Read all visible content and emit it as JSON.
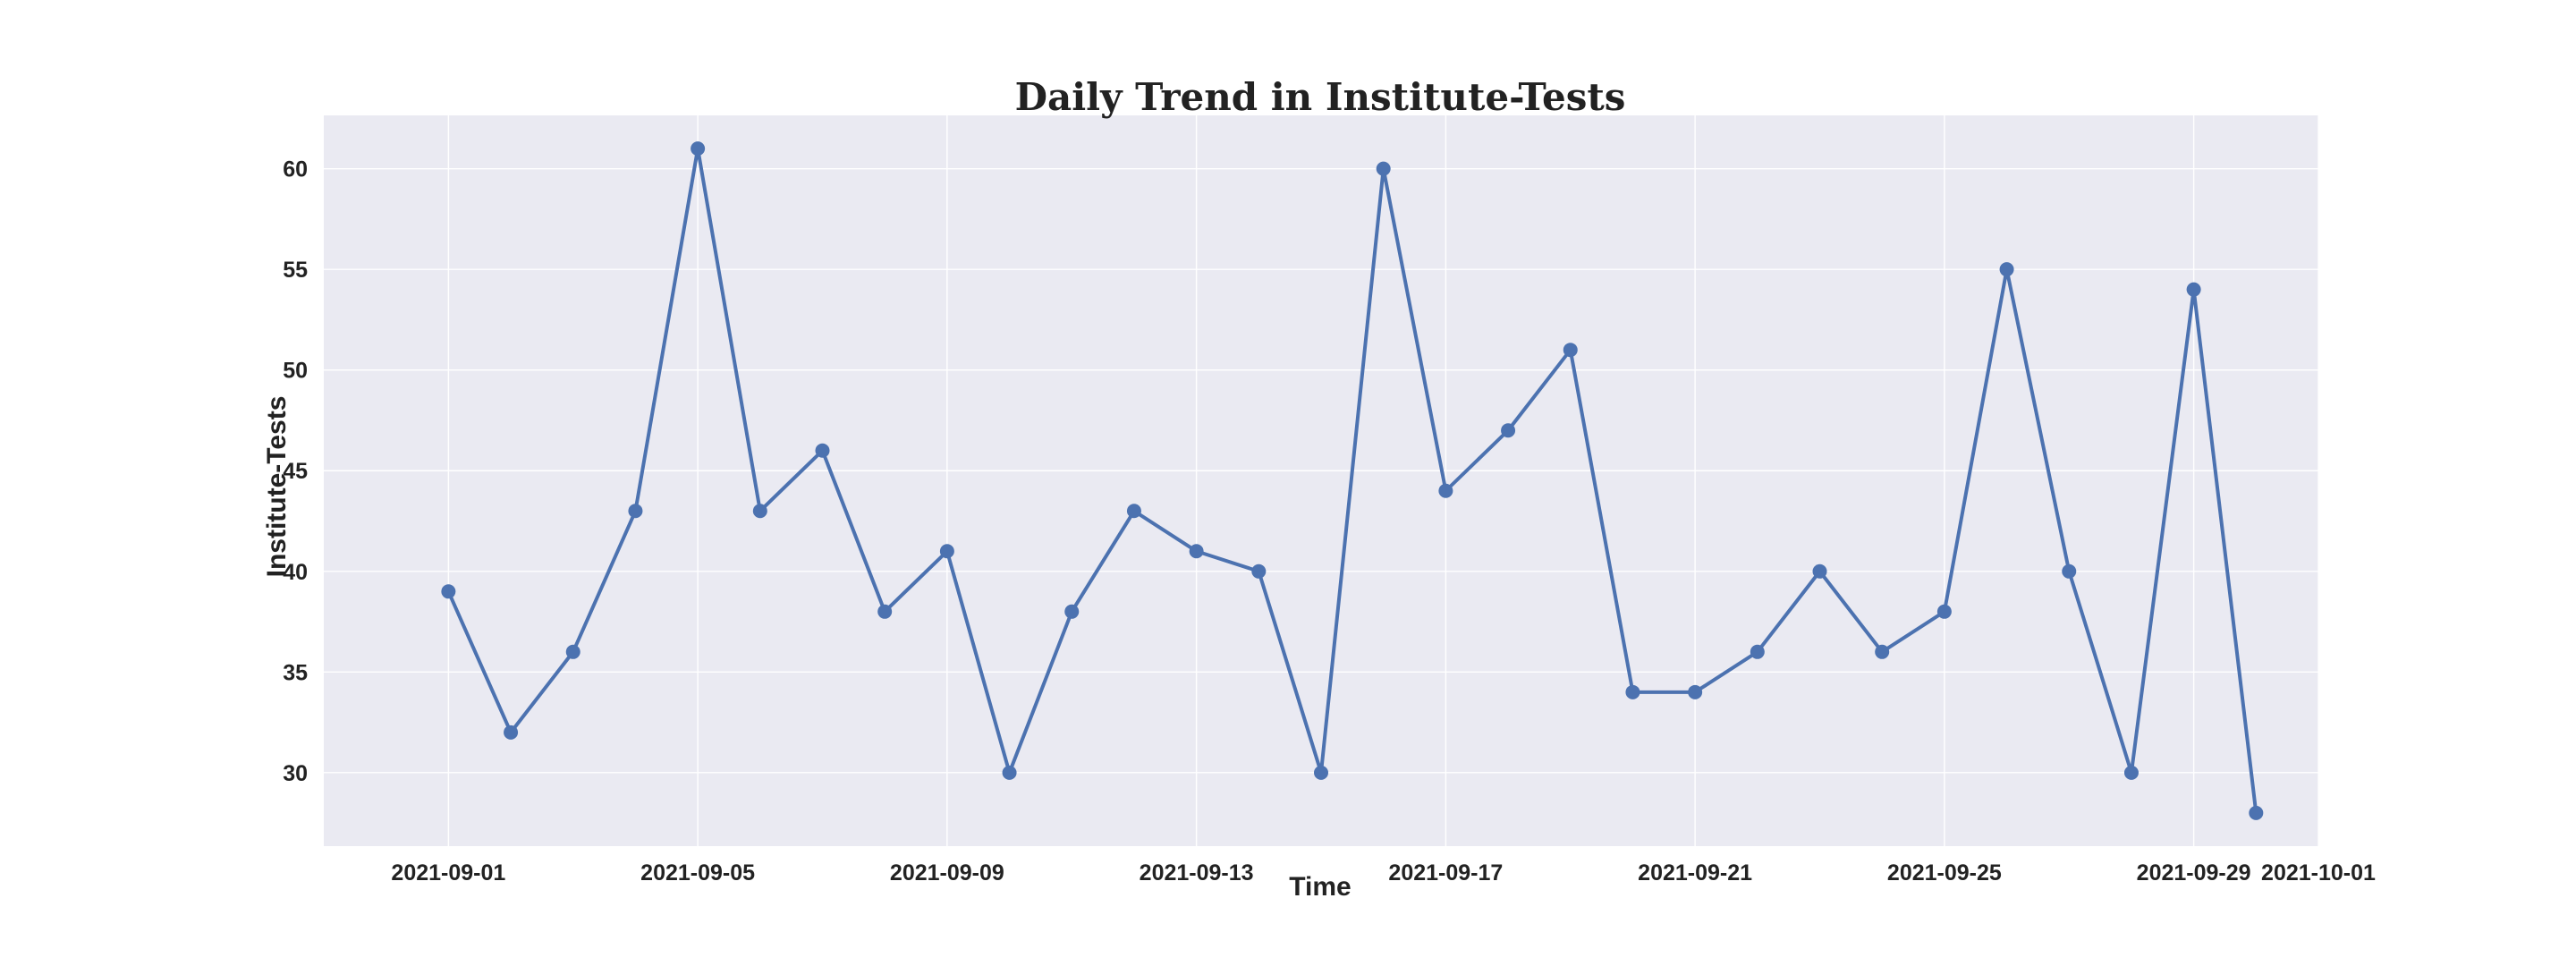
{
  "colors": {
    "plot_background": "#EAEAF2",
    "line": "#4C72B0",
    "grid": "#FFFFFF",
    "text": "#222222"
  },
  "chart_data": {
    "type": "line",
    "title": "Daily Trend in Institute-Tests",
    "xlabel": "Time",
    "ylabel": "Institute-Tests",
    "x": [
      "2021-09-01",
      "2021-09-02",
      "2021-09-03",
      "2021-09-04",
      "2021-09-05",
      "2021-09-06",
      "2021-09-07",
      "2021-09-08",
      "2021-09-09",
      "2021-09-10",
      "2021-09-11",
      "2021-09-12",
      "2021-09-13",
      "2021-09-14",
      "2021-09-15",
      "2021-09-16",
      "2021-09-17",
      "2021-09-18",
      "2021-09-19",
      "2021-09-20",
      "2021-09-21",
      "2021-09-22",
      "2021-09-23",
      "2021-09-24",
      "2021-09-25",
      "2021-09-26",
      "2021-09-27",
      "2021-09-28",
      "2021-09-29",
      "2021-09-30"
    ],
    "series": [
      {
        "values": [
          39,
          32,
          36,
          43,
          61,
          43,
          46,
          38,
          41,
          30,
          38,
          43,
          41,
          40,
          30,
          60,
          44,
          47,
          51,
          34,
          34,
          36,
          40,
          36,
          38,
          55,
          40,
          30,
          54,
          28
        ]
      }
    ],
    "xlim": [
      "2021-08-30",
      "2021-10-01"
    ],
    "ylim": [
      26.35,
      62.65
    ],
    "x_ticks": [
      "2021-09-01",
      "2021-09-05",
      "2021-09-09",
      "2021-09-13",
      "2021-09-17",
      "2021-09-21",
      "2021-09-25",
      "2021-09-29",
      "2021-10-01"
    ],
    "y_ticks": [
      "30",
      "35",
      "40",
      "45",
      "50",
      "55",
      "60"
    ],
    "grid": true,
    "marker": "circle"
  }
}
